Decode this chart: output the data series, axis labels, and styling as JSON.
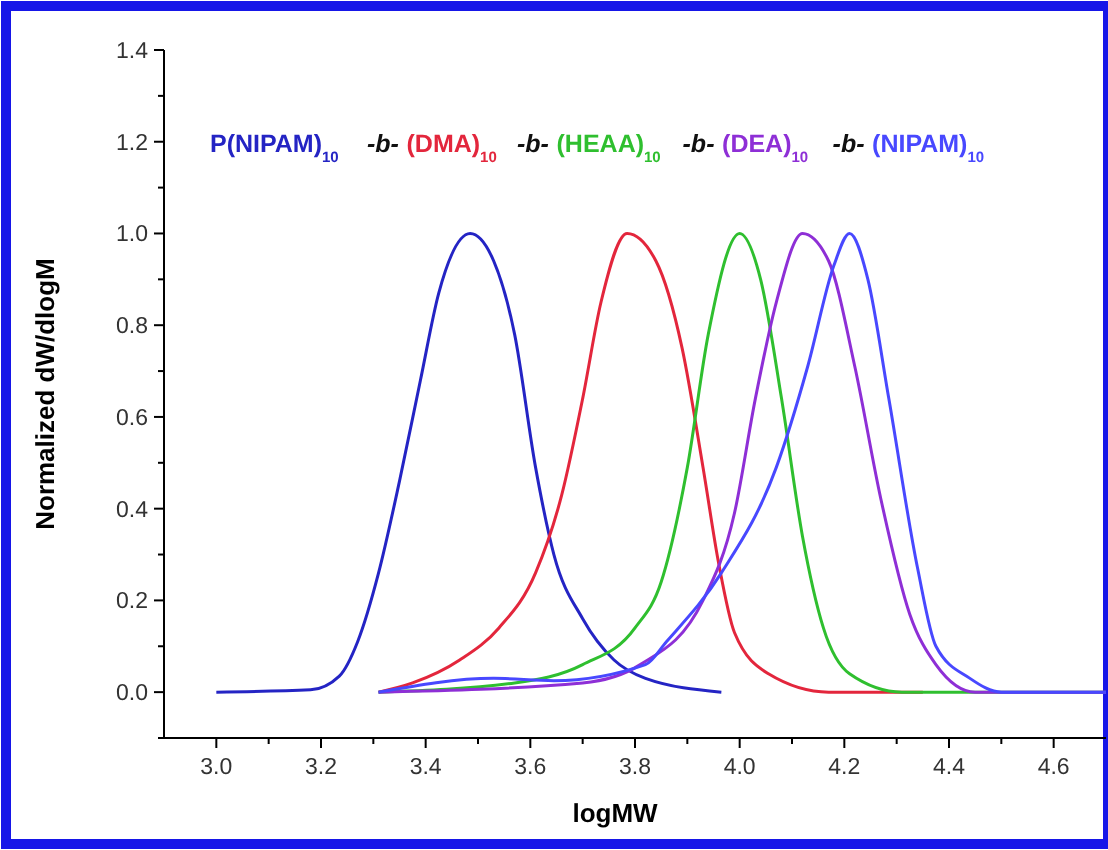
{
  "chart_data": {
    "type": "line",
    "xlabel": "logMW",
    "ylabel": "Normalized dW/dlogM",
    "xlim": [
      2.9,
      4.7
    ],
    "ylim": [
      -0.1,
      1.4
    ],
    "xticks": [
      {
        "value": 3,
        "label": "3.0"
      },
      {
        "value": 3.1,
        "label": null
      },
      3.2,
      {
        "value": 3.3,
        "label": null
      },
      3.4,
      {
        "value": 3.5,
        "label": null
      },
      3.6,
      {
        "value": 3.7,
        "label": null
      },
      3.8,
      {
        "value": 3.9,
        "label": null
      },
      {
        "value": 4,
        "label": "4.0"
      },
      {
        "value": 4.1,
        "label": null
      },
      4.2,
      {
        "value": 4.3,
        "label": null
      },
      4.4,
      {
        "value": 4.5,
        "label": null
      },
      4.6
    ],
    "yticks": [
      {
        "value": -0.1,
        "label": null
      },
      {
        "value": 0,
        "label": "0.0"
      },
      {
        "value": 0.1,
        "label": null
      },
      0.2,
      {
        "value": 0.3,
        "label": null
      },
      0.4,
      {
        "value": 0.5,
        "label": null
      },
      0.6,
      {
        "value": 0.7,
        "label": null
      },
      0.8,
      {
        "value": 0.9,
        "label": null
      },
      {
        "value": 1,
        "label": "1.0"
      },
      {
        "value": 1.1,
        "label": null
      },
      1.2,
      {
        "value": 1.3,
        "label": null
      },
      1.4
    ],
    "legend": "top left",
    "grid": false,
    "marker": "none",
    "line_style": "solid",
    "annotations": [
      "-b-"
    ],
    "series": [
      {
        "name": "P(NIPAM)$_{10}$",
        "color": "#2424c4",
        "x": [
          3.0,
          3.18,
          3.235,
          3.27,
          3.31,
          3.35,
          3.39,
          3.425,
          3.485,
          3.53,
          3.57,
          3.61,
          3.645,
          3.7,
          3.76,
          3.82,
          3.965
        ],
        "values": [
          0,
          0.005,
          0.035,
          0.11,
          0.26,
          0.46,
          0.68,
          0.87,
          1.0,
          0.94,
          0.78,
          0.49,
          0.3,
          0.16,
          0.07,
          0.03,
          0
        ]
      },
      {
        "name": "(DMA)$_{10}$",
        "color": "#e3263c",
        "x": [
          3.31,
          3.375,
          3.465,
          3.54,
          3.61,
          3.66,
          3.7,
          3.735,
          3.785,
          3.84,
          3.89,
          3.93,
          3.96,
          3.99,
          4.055,
          4.17,
          4.35
        ],
        "values": [
          0,
          0.02,
          0.07,
          0.14,
          0.26,
          0.43,
          0.64,
          0.85,
          1.0,
          0.94,
          0.75,
          0.49,
          0.28,
          0.13,
          0.04,
          0,
          0
        ]
      },
      {
        "name": "(HEAA)$_{10}$",
        "color": "#2fbf2f",
        "x": [
          3.31,
          3.57,
          3.7,
          3.8,
          3.85,
          3.9,
          3.94,
          4.0,
          4.04,
          4.08,
          4.12,
          4.16,
          4.21,
          4.31,
          4.7
        ],
        "values": [
          0,
          0.02,
          0.06,
          0.14,
          0.24,
          0.49,
          0.78,
          1.0,
          0.9,
          0.64,
          0.34,
          0.14,
          0.04,
          0,
          0
        ]
      },
      {
        "name": "(DEA)$_{10}$",
        "color": "#8e2fd6",
        "x": [
          3.31,
          3.7,
          3.81,
          3.93,
          3.99,
          4.03,
          4.07,
          4.12,
          4.17,
          4.22,
          4.27,
          4.325,
          4.375,
          4.45,
          4.7
        ],
        "values": [
          0,
          0.02,
          0.06,
          0.2,
          0.39,
          0.64,
          0.85,
          1.0,
          0.94,
          0.71,
          0.42,
          0.17,
          0.06,
          0,
          0
        ]
      },
      {
        "name": "(NIPAM)$_{10}$",
        "color": "#4848ff",
        "x": [
          3.31,
          3.53,
          3.645,
          3.82,
          3.86,
          3.965,
          4.07,
          4.13,
          4.18,
          4.21,
          4.245,
          4.285,
          4.34,
          4.375,
          4.44,
          4.5,
          4.7
        ],
        "values": [
          0,
          0.03,
          0.025,
          0.06,
          0.11,
          0.26,
          0.49,
          0.71,
          0.93,
          1.0,
          0.9,
          0.64,
          0.27,
          0.1,
          0.03,
          0,
          0
        ]
      }
    ]
  }
}
